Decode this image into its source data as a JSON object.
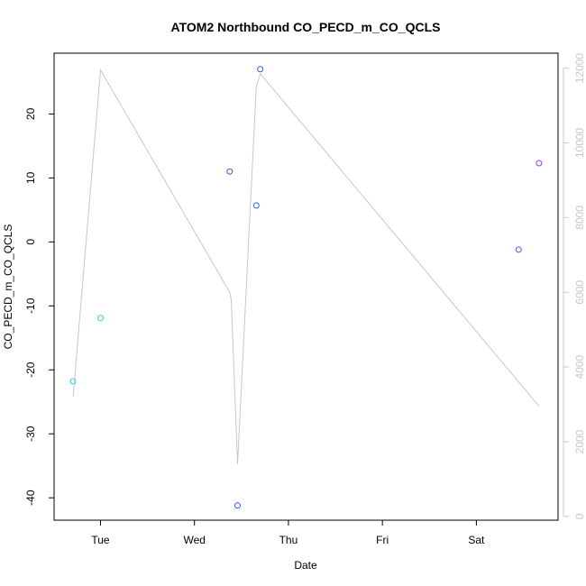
{
  "chart_data": {
    "type": "scatter",
    "title": "ATOM2 Northbound CO_PECD_m_CO_QCLS",
    "xlabel": "Date",
    "ylabel": "CO_PECD_m_CO_QCLS",
    "x_ticks": [
      "Tue",
      "Wed",
      "Thu",
      "Fri",
      "Sat"
    ],
    "xlim": [
      "2016-08-01T12:09",
      "2016-08-06T20:52"
    ],
    "ylim": [
      -43.5,
      29.5
    ],
    "y_ticks": [
      -40,
      -30,
      -20,
      -10,
      0,
      10,
      20
    ],
    "y2lim": [
      -100,
      12400
    ],
    "y2_ticks": [
      0,
      2000,
      4000,
      6000,
      8000,
      10000,
      12000
    ],
    "grid": false,
    "points": [
      {
        "x": "2016-08-01T17:00",
        "y": -21.8,
        "color": "#3fc8f0"
      },
      {
        "x": "2016-08-02T00:00",
        "y": -11.9,
        "color": "#3fc8f0"
      },
      {
        "x": "2016-08-03T09:00",
        "y": 11.0,
        "color": "#2f5fe0"
      },
      {
        "x": "2016-08-03T11:00",
        "y": -41.2,
        "color": "#2f5fe0"
      },
      {
        "x": "2016-08-03T15:48",
        "y": 5.7,
        "color": "#2f5fe0"
      },
      {
        "x": "2016-08-03T16:48",
        "y": 27.0,
        "color": "#2f5fe0"
      },
      {
        "x": "2016-08-06T10:48",
        "y": -1.2,
        "color": "#8a3fe0"
      },
      {
        "x": "2016-08-06T16:00",
        "y": 12.3,
        "color": "#8a3fe0"
      }
    ],
    "secondary_series": {
      "color": "#c8c8c8",
      "x": [
        "2016-08-01T17:00",
        "2016-08-02T00:00",
        "2016-08-03T09:00",
        "2016-08-03T09:24",
        "2016-08-03T11:00",
        "2016-08-03T15:48",
        "2016-08-03T16:48",
        "2016-08-06T16:00"
      ],
      "y": [
        3200,
        11950,
        6000,
        5800,
        1400,
        11500,
        11850,
        2950
      ]
    }
  }
}
